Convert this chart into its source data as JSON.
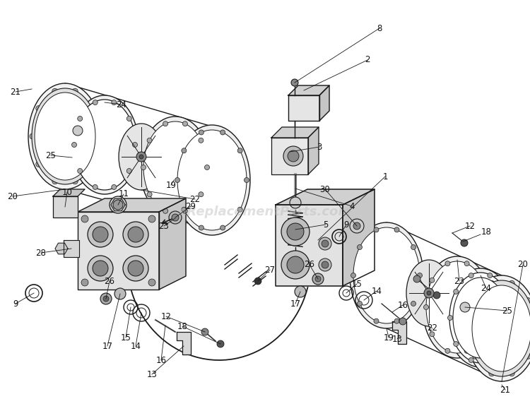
{
  "bg_color": "#ffffff",
  "line_color": "#1a1a1a",
  "watermark_text": "eReplacementParts.com",
  "watermark_color": "#bbbbbb",
  "watermark_alpha": 0.45,
  "watermark_fontsize": 13,
  "label_fontsize": 8.5,
  "fig_width": 7.5,
  "fig_height": 5.82,
  "dpi": 100
}
